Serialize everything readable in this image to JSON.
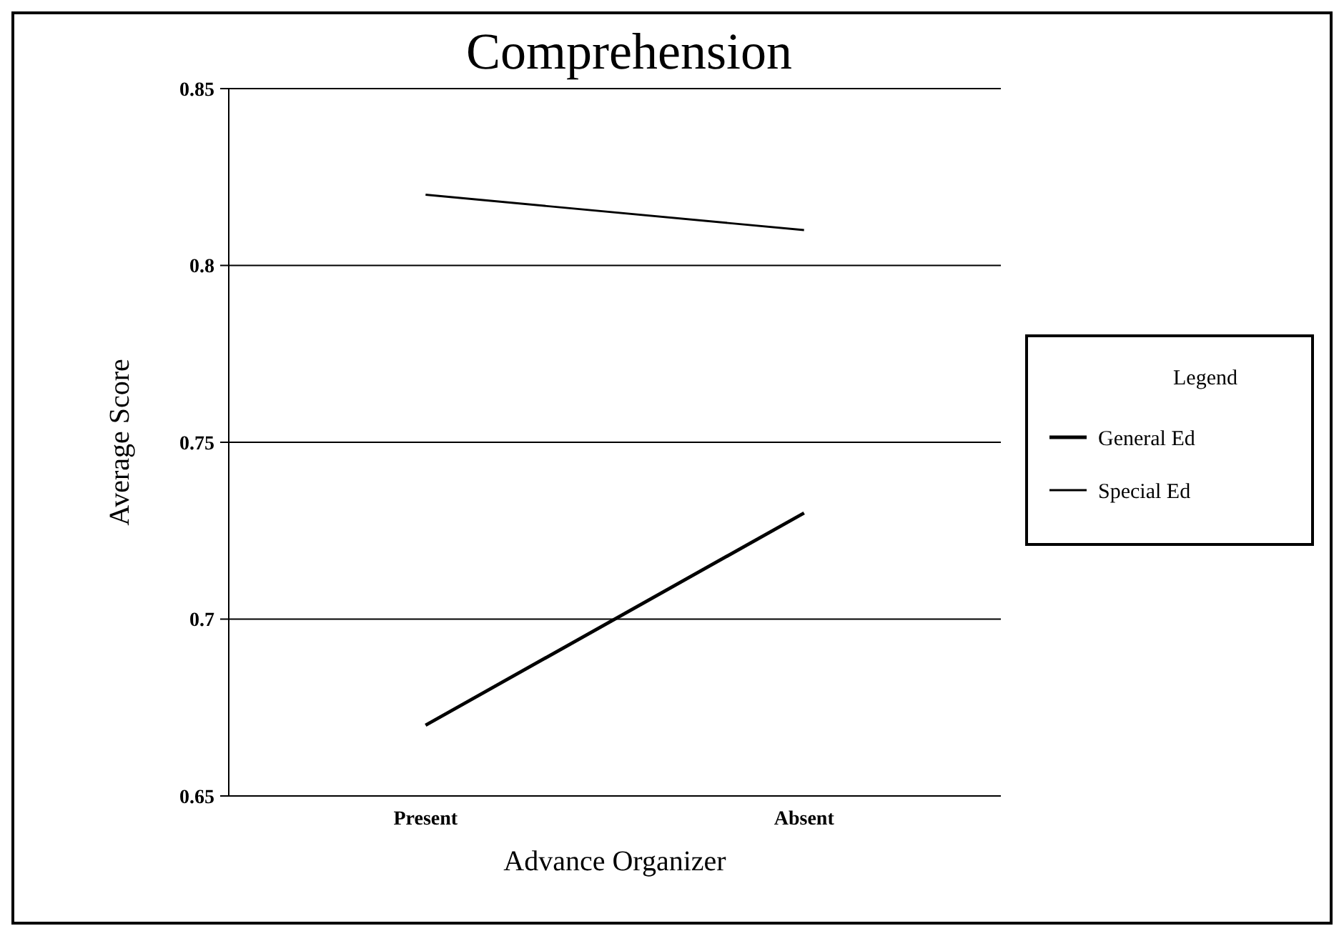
{
  "chart_data": {
    "type": "line",
    "title": "Comprehension",
    "xlabel": "Advance Organizer",
    "ylabel": "Average Score",
    "legend_title": "Legend",
    "categories": [
      "Present",
      "Absent"
    ],
    "series": [
      {
        "name": "General Ed",
        "color": "#000000",
        "values": [
          0.67,
          0.73
        ]
      },
      {
        "name": "Special Ed",
        "color": "#000000",
        "values": [
          0.82,
          0.81
        ]
      }
    ],
    "ylim": [
      0.65,
      0.85
    ],
    "yticks": [
      0.65,
      0.7,
      0.75,
      0.8,
      0.85
    ],
    "grid": "y",
    "legend": "right",
    "marker": "none",
    "line_style": "solid"
  }
}
